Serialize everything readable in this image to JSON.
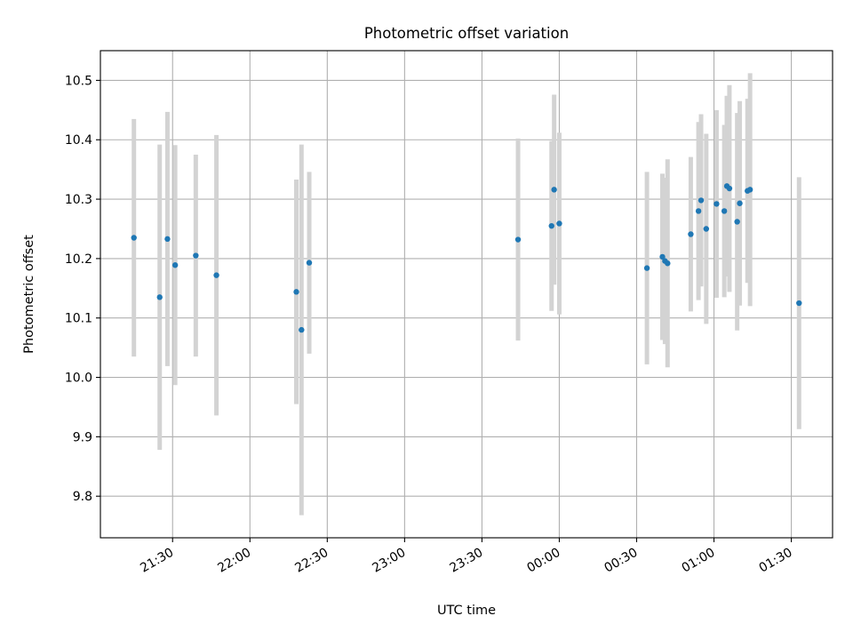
{
  "chart_data": {
    "type": "scatter",
    "title": "Photometric offset variation",
    "xlabel": "UTC time",
    "ylabel": "Photometric offset",
    "x_axis": {
      "unit": "time of day (UTC), values past 24:00 are after midnight",
      "range": [
        "21:02",
        "25:46"
      ],
      "ticks": [
        "21:30",
        "22:00",
        "22:30",
        "23:00",
        "23:30",
        "00:00",
        "00:30",
        "01:00",
        "01:30"
      ],
      "tick_times": [
        "21:30",
        "22:00",
        "22:30",
        "23:00",
        "23:30",
        "24:00",
        "24:30",
        "25:00",
        "25:30"
      ]
    },
    "y_axis": {
      "range": [
        9.73,
        10.55
      ],
      "ticks": [
        9.8,
        9.9,
        10.0,
        10.1,
        10.2,
        10.3,
        10.4,
        10.5
      ]
    },
    "grid": true,
    "colors": {
      "point": "#1f77b4",
      "errorbar": "#d3d3d3",
      "grid": "#b0b0b0"
    },
    "series": [
      {
        "points": [
          {
            "time": "21:15",
            "y": 10.235,
            "err": 0.2
          },
          {
            "time": "21:25",
            "y": 10.135,
            "err": 0.257
          },
          {
            "time": "21:28",
            "y": 10.233,
            "err": 0.214
          },
          {
            "time": "21:31",
            "y": 10.189,
            "err": 0.202
          },
          {
            "time": "21:39",
            "y": 10.205,
            "err": 0.17
          },
          {
            "time": "21:47",
            "y": 10.172,
            "err": 0.236
          },
          {
            "time": "22:18",
            "y": 10.144,
            "err": 0.189
          },
          {
            "time": "22:20",
            "y": 10.08,
            "err": 0.312
          },
          {
            "time": "22:23",
            "y": 10.193,
            "err": 0.153
          },
          {
            "time": "23:44",
            "y": 10.232,
            "err": 0.17
          },
          {
            "time": "23:57",
            "y": 10.255,
            "err": 0.143
          },
          {
            "time": "23:58",
            "y": 10.316,
            "err": 0.16
          },
          {
            "time": "24:00",
            "y": 10.259,
            "err": 0.153
          },
          {
            "time": "24:34",
            "y": 10.184,
            "err": 0.162
          },
          {
            "time": "24:40",
            "y": 10.203,
            "err": 0.14
          },
          {
            "time": "24:41",
            "y": 10.196,
            "err": 0.14
          },
          {
            "time": "24:42",
            "y": 10.192,
            "err": 0.175
          },
          {
            "time": "24:51",
            "y": 10.241,
            "err": 0.13
          },
          {
            "time": "24:54",
            "y": 10.28,
            "err": 0.15
          },
          {
            "time": "24:55",
            "y": 10.298,
            "err": 0.145
          },
          {
            "time": "24:57",
            "y": 10.25,
            "err": 0.16
          },
          {
            "time": "25:01",
            "y": 10.292,
            "err": 0.158
          },
          {
            "time": "25:04",
            "y": 10.28,
            "err": 0.145
          },
          {
            "time": "25:05",
            "y": 10.322,
            "err": 0.152
          },
          {
            "time": "25:06",
            "y": 10.318,
            "err": 0.174
          },
          {
            "time": "25:09",
            "y": 10.262,
            "err": 0.183
          },
          {
            "time": "25:10",
            "y": 10.293,
            "err": 0.172
          },
          {
            "time": "25:13",
            "y": 10.314,
            "err": 0.155
          },
          {
            "time": "25:14",
            "y": 10.316,
            "err": 0.196
          },
          {
            "time": "25:33",
            "y": 10.125,
            "err": 0.212
          }
        ]
      }
    ]
  }
}
